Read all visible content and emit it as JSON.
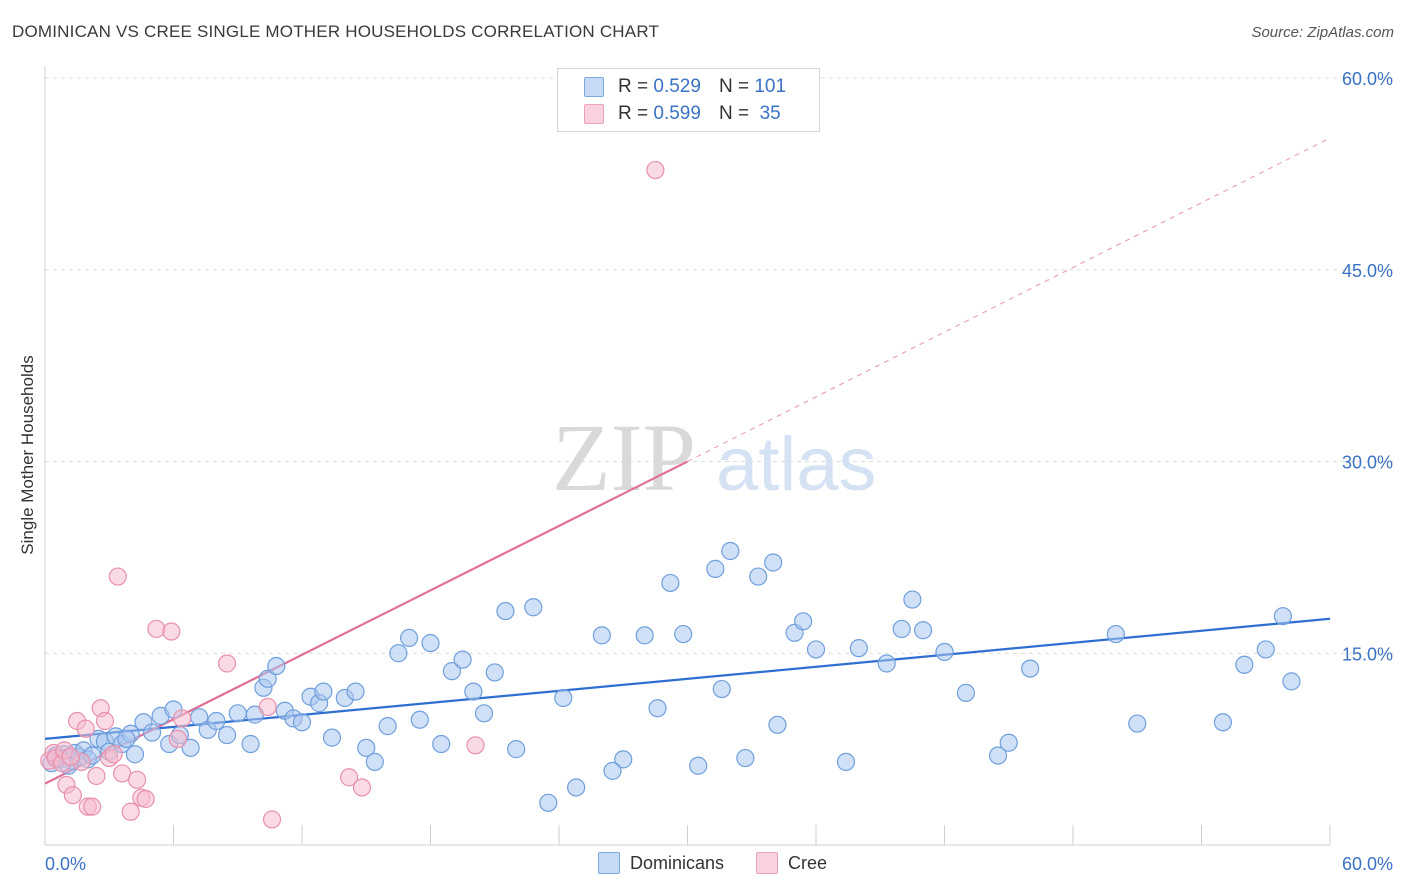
{
  "title": "DOMINICAN VS CREE SINGLE MOTHER HOUSEHOLDS CORRELATION CHART",
  "source": "Source: ZipAtlas.com",
  "watermark": {
    "zip": "ZIP",
    "atlas": "atlas"
  },
  "legend": {
    "r_label": "R =",
    "n_label": "N =",
    "rows": [
      {
        "name": "Dominicans",
        "r": "0.529",
        "n": "101",
        "color": "#a9c6ee",
        "stroke": "#6f9fdc"
      },
      {
        "name": "Cree",
        "r": "0.599",
        "n": "35",
        "color": "#f6bccd",
        "stroke": "#e890ac"
      }
    ]
  },
  "chart_data": {
    "type": "scatter",
    "title": "DOMINICAN VS CREE SINGLE MOTHER HOUSEHOLDS CORRELATION CHART",
    "xlabel": "",
    "ylabel": "Single Mother Households",
    "xlim": [
      0,
      60
    ],
    "ylim": [
      0,
      60
    ],
    "x_tick_labels": [
      "0.0%",
      "60.0%"
    ],
    "y_tick_labels": [
      "15.0%",
      "30.0%",
      "45.0%",
      "60.0%"
    ],
    "y_ticks": [
      15,
      30,
      45,
      60
    ],
    "series": [
      {
        "name": "Dominicans",
        "color": "#6f9fdc",
        "fill": "#a9c6ee",
        "trend": {
          "x0": 0,
          "y0": 8.3,
          "x1": 60,
          "y1": 17.7,
          "color": "#2f6fd0"
        },
        "points": [
          [
            0.3,
            6.4
          ],
          [
            0.5,
            7.0
          ],
          [
            0.7,
            6.7
          ],
          [
            0.9,
            7.1
          ],
          [
            1.0,
            6.8
          ],
          [
            1.2,
            6.6
          ],
          [
            1.4,
            7.2
          ],
          [
            1.6,
            6.9
          ],
          [
            1.8,
            7.4
          ],
          [
            2.0,
            6.7
          ],
          [
            2.2,
            7.0
          ],
          [
            2.5,
            8.3
          ],
          [
            2.8,
            8.1
          ],
          [
            3.0,
            7.3
          ],
          [
            3.3,
            8.5
          ],
          [
            3.6,
            7.9
          ],
          [
            4.0,
            8.7
          ],
          [
            4.2,
            7.1
          ],
          [
            4.6,
            9.6
          ],
          [
            5.0,
            8.8
          ],
          [
            5.4,
            10.1
          ],
          [
            5.8,
            7.9
          ],
          [
            6.3,
            8.6
          ],
          [
            6.8,
            7.6
          ],
          [
            7.2,
            10.0
          ],
          [
            7.6,
            9.0
          ],
          [
            8.0,
            9.7
          ],
          [
            8.5,
            8.6
          ],
          [
            9.0,
            10.3
          ],
          [
            9.6,
            7.9
          ],
          [
            10.2,
            12.3
          ],
          [
            10.4,
            13.0
          ],
          [
            10.8,
            14.0
          ],
          [
            11.2,
            10.5
          ],
          [
            11.6,
            9.9
          ],
          [
            12.0,
            9.6
          ],
          [
            12.4,
            11.6
          ],
          [
            12.8,
            11.1
          ],
          [
            13.0,
            12.0
          ],
          [
            13.4,
            8.4
          ],
          [
            14.0,
            11.5
          ],
          [
            14.5,
            12.0
          ],
          [
            15.0,
            7.6
          ],
          [
            15.4,
            6.5
          ],
          [
            16.0,
            9.3
          ],
          [
            16.5,
            15.0
          ],
          [
            17.0,
            16.2
          ],
          [
            17.5,
            9.8
          ],
          [
            18.0,
            15.8
          ],
          [
            18.5,
            7.9
          ],
          [
            19.0,
            13.6
          ],
          [
            19.5,
            14.5
          ],
          [
            20.0,
            12.0
          ],
          [
            20.5,
            10.3
          ],
          [
            21.0,
            13.5
          ],
          [
            21.5,
            18.3
          ],
          [
            22.0,
            7.5
          ],
          [
            22.8,
            18.6
          ],
          [
            23.5,
            3.3
          ],
          [
            24.2,
            11.5
          ],
          [
            24.8,
            4.5
          ],
          [
            26.0,
            16.4
          ],
          [
            27.0,
            6.7
          ],
          [
            28.0,
            16.4
          ],
          [
            28.6,
            10.7
          ],
          [
            29.2,
            20.5
          ],
          [
            29.8,
            16.5
          ],
          [
            30.5,
            6.2
          ],
          [
            31.3,
            21.6
          ],
          [
            31.6,
            12.2
          ],
          [
            32.0,
            23.0
          ],
          [
            32.7,
            6.8
          ],
          [
            33.3,
            21.0
          ],
          [
            34.0,
            22.1
          ],
          [
            34.2,
            9.4
          ],
          [
            35.0,
            16.6
          ],
          [
            35.4,
            17.5
          ],
          [
            36.0,
            15.3
          ],
          [
            37.4,
            6.5
          ],
          [
            38.0,
            15.4
          ],
          [
            39.3,
            14.2
          ],
          [
            40.0,
            16.9
          ],
          [
            40.5,
            19.2
          ],
          [
            41.0,
            16.8
          ],
          [
            42.0,
            15.1
          ],
          [
            43.0,
            11.9
          ],
          [
            44.5,
            7.0
          ],
          [
            45.0,
            8.0
          ],
          [
            46.0,
            13.8
          ],
          [
            50.0,
            16.5
          ],
          [
            51.0,
            9.5
          ],
          [
            55.0,
            9.6
          ],
          [
            56.0,
            14.1
          ],
          [
            57.0,
            15.3
          ],
          [
            57.8,
            17.9
          ],
          [
            58.2,
            12.8
          ],
          [
            1.1,
            6.2
          ],
          [
            3.8,
            8.3
          ],
          [
            6.0,
            10.6
          ],
          [
            9.8,
            10.2
          ],
          [
            26.5,
            5.8
          ]
        ]
      },
      {
        "name": "Cree",
        "color": "#e890ac",
        "fill": "#f6bccd",
        "trend": {
          "x0": 0,
          "y0": 4.8,
          "x1": 30,
          "y1": 30.0,
          "color": "#e07098",
          "dashed_to": {
            "x": 60,
            "y": 55.3
          }
        },
        "points": [
          [
            0.2,
            6.6
          ],
          [
            0.4,
            7.2
          ],
          [
            0.5,
            6.8
          ],
          [
            0.8,
            6.4
          ],
          [
            1.0,
            4.7
          ],
          [
            1.3,
            3.9
          ],
          [
            1.5,
            9.7
          ],
          [
            1.7,
            6.5
          ],
          [
            1.9,
            9.1
          ],
          [
            2.0,
            3.0
          ],
          [
            2.2,
            3.0
          ],
          [
            2.4,
            5.4
          ],
          [
            2.6,
            10.7
          ],
          [
            2.8,
            9.7
          ],
          [
            3.0,
            6.8
          ],
          [
            3.2,
            7.1
          ],
          [
            3.4,
            21.0
          ],
          [
            3.6,
            5.6
          ],
          [
            4.0,
            2.6
          ],
          [
            4.3,
            5.1
          ],
          [
            4.5,
            3.7
          ],
          [
            4.7,
            3.6
          ],
          [
            5.2,
            16.9
          ],
          [
            5.9,
            16.7
          ],
          [
            6.2,
            8.3
          ],
          [
            6.4,
            9.9
          ],
          [
            8.5,
            14.2
          ],
          [
            10.4,
            10.8
          ],
          [
            10.6,
            2.0
          ],
          [
            14.2,
            5.3
          ],
          [
            14.8,
            4.5
          ],
          [
            20.1,
            7.8
          ],
          [
            28.5,
            52.8
          ],
          [
            0.9,
            7.4
          ],
          [
            1.2,
            6.9
          ]
        ]
      }
    ]
  }
}
